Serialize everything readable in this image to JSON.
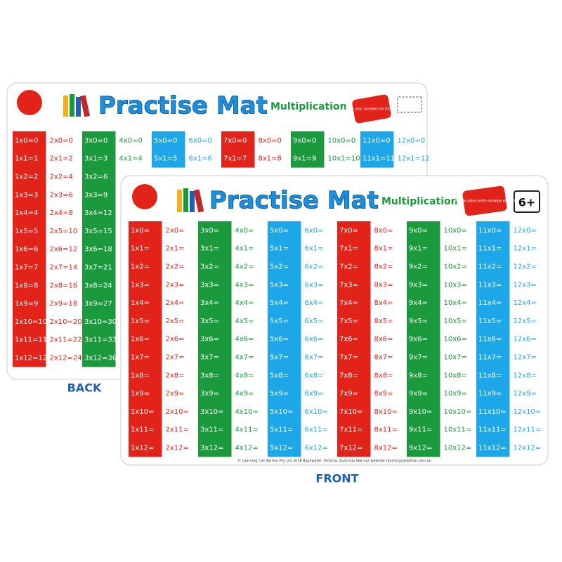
{
  "back": {
    "title": "Practise Mat",
    "subtitle": "Multiplication",
    "badge": "check your answers on this side",
    "label": "BACK",
    "columns": [
      [
        "1x0=0",
        "1x1=1",
        "1x2=2",
        "1x3=3",
        "1x4=4",
        "1x5=5",
        "1x6=6",
        "1x7=7",
        "1x8=8",
        "1x9=9",
        "1x10=10",
        "1x11=11",
        "1x12=12"
      ],
      [
        "2x0=0",
        "2x1=2",
        "2x2=4",
        "2x3=6",
        "2x4=8",
        "2x5=10",
        "2x6=12",
        "2x7=14",
        "2x8=16",
        "2x9=18",
        "2x10=20",
        "2x11=22",
        "2x12=24"
      ],
      [
        "3x0=0",
        "3x1=3",
        "3x2=6",
        "3x3=9",
        "3x4=12",
        "3x5=15",
        "3x6=18",
        "3x7=21",
        "3x8=24",
        "3x9=27",
        "3x10=30",
        "3x11=33",
        "3x12=36"
      ],
      [
        "4x0=0",
        "4x1=4"
      ],
      [
        "5x0=0",
        "5x1=5"
      ],
      [
        "6x0=0",
        "6x1=6"
      ],
      [
        "7x0=0",
        "7x1=7"
      ],
      [
        "8x0=0",
        "8x1=8"
      ],
      [
        "9x0=0",
        "9x1=9"
      ],
      [
        "10x0=0",
        "10x1=10"
      ],
      [
        "11x0=0",
        "11x1=11"
      ],
      [
        "12x0=0",
        "12x1=12"
      ]
    ]
  },
  "front": {
    "title": "Practise Mat",
    "subtitle": "Multiplication",
    "badge": "double-sided write on/wipe off mat",
    "age": "6+",
    "label": "FRONT",
    "footer": "© Learning Can Be Fun Pty Ltd 2016 Bayswater, Victoria, Australia See our website: learningcanbefun.com.au",
    "columns": [
      [
        "1x0=",
        "1x1=",
        "1x2=",
        "1x3=",
        "1x4=",
        "1x5=",
        "1x6=",
        "1x7=",
        "1x8=",
        "1x9=",
        "1x10=",
        "1x11=",
        "1x12="
      ],
      [
        "2x0=",
        "2x1=",
        "2x2=",
        "2x3=",
        "2x4=",
        "2x5=",
        "2x6=",
        "2x7=",
        "2x8=",
        "2x9=",
        "2x10=",
        "2x11=",
        "2x12="
      ],
      [
        "3x0=",
        "3x1=",
        "3x2=",
        "3x3=",
        "3x4=",
        "3x5=",
        "3x6=",
        "3x7=",
        "3x8=",
        "3x9=",
        "3x10=",
        "3x11=",
        "3x12="
      ],
      [
        "4x0=",
        "4x1=",
        "4x2=",
        "4x3=",
        "4x4=",
        "4x5=",
        "4x6=",
        "4x7=",
        "4x8=",
        "4x9=",
        "4x10=",
        "4x11=",
        "4x12="
      ],
      [
        "5x0=",
        "5x1=",
        "5x2=",
        "5x3=",
        "5x4=",
        "5x5=",
        "5x6=",
        "5x7=",
        "5x8=",
        "5x9=",
        "5x10=",
        "5x11=",
        "5x12="
      ],
      [
        "6x0=",
        "6x1=",
        "6x2=",
        "6x3=",
        "6x4=",
        "6x5=",
        "6x6=",
        "6x7=",
        "6x8=",
        "6x9=",
        "6x10=",
        "6x11=",
        "6x12="
      ],
      [
        "7x0=",
        "7x1=",
        "7x2=",
        "7x3=",
        "7x4=",
        "7x5=",
        "7x6=",
        "7x7=",
        "7x8=",
        "7x9=",
        "7x10=",
        "7x11=",
        "7x12="
      ],
      [
        "8x0=",
        "8x1=",
        "8x2=",
        "8x3=",
        "8x4=",
        "8x5=",
        "8x6=",
        "8x7=",
        "8x8=",
        "8x9=",
        "8x10=",
        "8x11=",
        "8x12="
      ],
      [
        "9x0=",
        "9x1=",
        "9x2=",
        "9x3=",
        "9x4=",
        "9x5=",
        "9x6=",
        "9x7=",
        "9x8=",
        "9x9=",
        "9x10=",
        "9x11=",
        "9x12="
      ],
      [
        "10x0=",
        "10x1=",
        "10x2=",
        "10x3=",
        "10x4=",
        "10x5=",
        "10x6=",
        "10x7=",
        "10x8=",
        "10x9=",
        "10x10=",
        "10x11=",
        "10x12="
      ],
      [
        "11x0=",
        "11x1=",
        "11x2=",
        "11x3=",
        "11x4=",
        "11x5=",
        "11x6=",
        "11x7=",
        "11x8=",
        "11x9=",
        "11x10=",
        "11x11=",
        "11x12="
      ],
      [
        "12x0=",
        "12x1=",
        "12x2=",
        "12x3=",
        "12x4=",
        "12x5=",
        "12x6=",
        "12x7=",
        "12x8=",
        "12x9=",
        "12x10=",
        "12x11=",
        "12x12="
      ]
    ]
  }
}
